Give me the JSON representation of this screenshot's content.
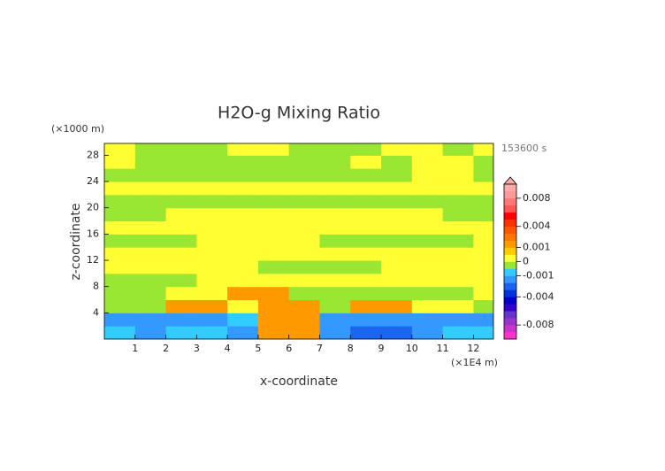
{
  "chart_data": {
    "type": "contour",
    "title": "H2O-g Mixing Ratio",
    "xlabel": "x-coordinate",
    "ylabel": "z-coordinate",
    "x_unit": "(×1E4 m)",
    "y_unit": "(×1000 m)",
    "time_label": "153600 s",
    "xlim": [
      0,
      12.65
    ],
    "ylim": [
      0,
      29.8
    ],
    "xticks": [
      1,
      2,
      3,
      4,
      5,
      6,
      7,
      8,
      9,
      10,
      11,
      12
    ],
    "yticks": [
      4,
      8,
      12,
      16,
      20,
      24,
      28
    ],
    "x": [
      0.5,
      1.5,
      2.5,
      3.5,
      4.5,
      5.5,
      6.5,
      7.5,
      8.5,
      9.5,
      10.5,
      11.5,
      12.5
    ],
    "z": [
      1,
      3,
      5,
      7,
      9,
      11,
      13,
      15,
      17,
      19,
      21,
      23,
      25,
      27,
      29
    ],
    "values": [
      [
        -0.0007,
        -0.0015,
        -0.0007,
        -0.0007,
        -0.0015,
        0.0015,
        0.0015,
        -0.0015,
        -0.0025,
        -0.0025,
        -0.0015,
        -0.0007,
        -0.0007
      ],
      [
        -0.0015,
        -0.0015,
        -0.0015,
        -0.0015,
        -0.0007,
        0.0015,
        0.0015,
        -0.0015,
        -0.0015,
        -0.0015,
        -0.0015,
        -0.0015,
        -0.0015
      ],
      [
        -0.0002,
        -0.0002,
        0.0015,
        0.0015,
        0.0002,
        0.0015,
        0.0015,
        -0.0002,
        0.0015,
        0.0015,
        0.0002,
        0.0002,
        -0.0002
      ],
      [
        -0.0002,
        -0.0002,
        0.0002,
        0.0002,
        0.0015,
        0.0015,
        -0.0002,
        -0.0002,
        -0.0002,
        -0.0002,
        -0.0002,
        -0.0002,
        0.0002
      ],
      [
        -0.0002,
        -0.0002,
        -0.0002,
        0.0002,
        0.0002,
        0.0002,
        0.0002,
        0.0002,
        0.0002,
        0.0002,
        0.0002,
        0.0002,
        0.0002
      ],
      [
        0.0002,
        0.0002,
        0.0002,
        0.0002,
        0.0002,
        -0.0002,
        -0.0002,
        -0.0002,
        -0.0002,
        0.0002,
        0.0002,
        0.0002,
        0.0002
      ],
      [
        0.0002,
        0.0002,
        0.0002,
        0.0002,
        0.0002,
        0.0002,
        0.0002,
        0.0002,
        0.0002,
        0.0002,
        0.0002,
        0.0002,
        0.0002
      ],
      [
        -0.0002,
        -0.0002,
        -0.0002,
        0.0002,
        0.0002,
        0.0002,
        0.0002,
        -0.0002,
        -0.0002,
        -0.0002,
        -0.0002,
        -0.0002,
        0.0002
      ],
      [
        0.0002,
        0.0002,
        0.0002,
        0.0002,
        0.0002,
        0.0002,
        0.0002,
        0.0002,
        0.0002,
        0.0002,
        0.0002,
        0.0002,
        0.0002
      ],
      [
        -0.0002,
        -0.0002,
        0.0002,
        0.0002,
        0.0002,
        0.0002,
        0.0002,
        0.0002,
        0.0002,
        0.0002,
        0.0002,
        -0.0002,
        -0.0002
      ],
      [
        -0.0002,
        -0.0002,
        -0.0002,
        -0.0002,
        -0.0002,
        -0.0002,
        -0.0002,
        -0.0002,
        -0.0002,
        -0.0002,
        -0.0002,
        -0.0002,
        -0.0002
      ],
      [
        0.0002,
        0.0002,
        0.0002,
        0.0002,
        0.0002,
        0.0002,
        0.0002,
        0.0002,
        0.0002,
        0.0002,
        0.0002,
        0.0002,
        0.0002
      ],
      [
        -0.0002,
        -0.0002,
        -0.0002,
        -0.0002,
        -0.0002,
        -0.0002,
        -0.0002,
        -0.0002,
        -0.0002,
        -0.0002,
        0.0002,
        0.0002,
        -0.0002
      ],
      [
        0.0002,
        -0.0002,
        -0.0002,
        -0.0002,
        -0.0002,
        -0.0002,
        -0.0002,
        -0.0002,
        0.0002,
        -0.0002,
        0.0002,
        0.0002,
        -0.0002
      ],
      [
        0.0002,
        -0.0002,
        -0.0002,
        -0.0002,
        0.0002,
        0.0002,
        -0.0002,
        -0.0002,
        -0.0002,
        0.0002,
        0.0002,
        -0.0002,
        0.0002
      ]
    ],
    "colorbar": {
      "levels": [
        -0.01,
        -0.009,
        -0.008,
        -0.007,
        -0.006,
        -0.005,
        -0.004,
        -0.003,
        -0.002,
        -0.001,
        -0.0005,
        0,
        0.0005,
        0.001,
        0.002,
        0.003,
        0.004,
        0.005,
        0.006,
        0.007,
        0.008,
        0.009,
        0.01
      ],
      "colors": [
        "#ff33cc",
        "#cc33cc",
        "#9933cc",
        "#6633cc",
        "#3300cc",
        "#0000cc",
        "#0033dd",
        "#1a66ee",
        "#3399ff",
        "#33ccff",
        "#99e633",
        "#ffff33",
        "#ffcc00",
        "#ff9900",
        "#ff7700",
        "#ff5500",
        "#ff3300",
        "#ff0000",
        "#ff5555",
        "#ff7777",
        "#ff9999",
        "#ffaaaa"
      ],
      "ticks": [
        0.008,
        0.004,
        0.001,
        0,
        -0.001,
        -0.004,
        -0.008
      ]
    }
  }
}
